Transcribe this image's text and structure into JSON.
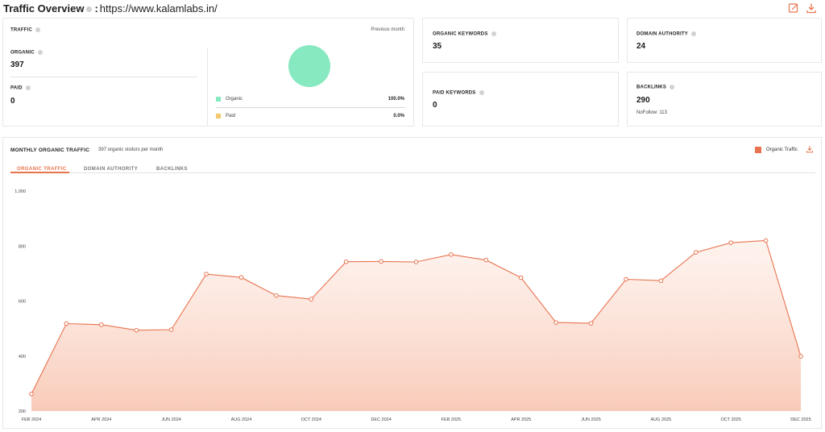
{
  "header": {
    "title": "Traffic Overview",
    "colon": ":",
    "url": "https://www.kalamlabs.in/"
  },
  "traffic": {
    "label": "TRAFFIC",
    "period": "Previous month",
    "organic_label": "ORGANIC",
    "organic_value": "397",
    "paid_label": "PAID",
    "paid_value": "0",
    "legend": [
      {
        "name": "Organic",
        "pct": "100.0%",
        "color": "#86e9bf"
      },
      {
        "name": "Paid",
        "pct": "0.0%",
        "color": "#f2c76e"
      }
    ],
    "pie": {
      "organic_share": 1.0,
      "paid_share": 0.0
    }
  },
  "organic_keywords": {
    "label": "ORGANIC KEYWORDS",
    "value": "35"
  },
  "domain_authority": {
    "label": "DOMAIN AUTHORITY",
    "value": "24"
  },
  "paid_keywords": {
    "label": "PAID KEYWORDS",
    "value": "0"
  },
  "backlinks": {
    "label": "BACKLINKS",
    "value": "290",
    "nofollow": "NoFollow: 113"
  },
  "monthly": {
    "title": "MONTHLY ORGANIC TRAFFIC",
    "subtitle": "397 organic visitors per month",
    "legend_label": "Organic Traffic",
    "accent": "#e8734f",
    "tabs": [
      "ORGANIC TRAFFIC",
      "DOMAIN AUTHORITY",
      "BACKLINKS"
    ],
    "active_tab": 0
  },
  "chart_data": {
    "type": "area",
    "series": [
      {
        "name": "Organic Traffic",
        "values": [
          262,
          518,
          514,
          494,
          496,
          698,
          686,
          620,
          607,
          743,
          744,
          742,
          769,
          749,
          685,
          522,
          519,
          679,
          674,
          777,
          812,
          820,
          399
        ]
      }
    ],
    "x_ticks": [
      "FEB 2024",
      "APR 2024",
      "JUN 2024",
      "AUG 2024",
      "OCT 2024",
      "DEC 2024",
      "FEB 2025",
      "APR 2025",
      "JUN 2025",
      "AUG 2025",
      "OCT 2025",
      "DEC 2025"
    ],
    "y_ticks": [
      "1,000",
      "800",
      "600",
      "400",
      "200"
    ],
    "ylim": [
      200,
      1000
    ],
    "grid": false
  }
}
